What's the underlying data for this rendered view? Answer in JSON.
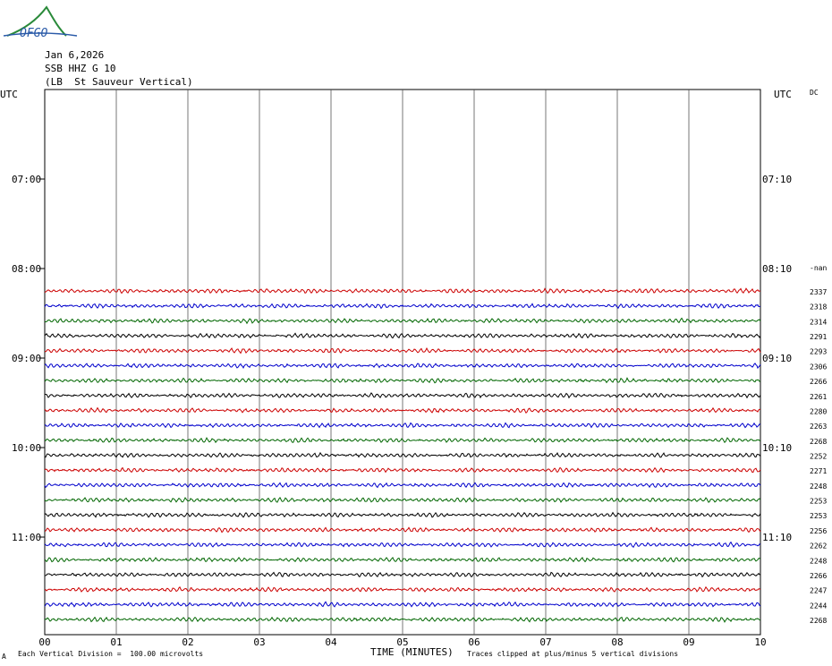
{
  "logo": {
    "text": "OFGO"
  },
  "header": {
    "date": "Jan 6,2026",
    "station": "SSB HHZ G 10",
    "location": "(LB  St Sauveur Vertical)"
  },
  "left_utc_header": "UTC",
  "right_utc_header": "UTC",
  "dc_header": "DC",
  "left_time_labels": [
    "07:00",
    "08:00",
    "09:00",
    "10:00",
    "11:00"
  ],
  "right_time_labels": [
    "07:10",
    "08:10",
    "09:10",
    "10:10",
    "11:10"
  ],
  "footer": {
    "scale_note": "Each Vertical Division =  100.00 microvolts",
    "axis_title": "TIME (MINUTES)",
    "clip_note": "Traces clipped at plus/minus 5 vertical divisions",
    "corner_mark": "A"
  },
  "chart_data": {
    "type": "line",
    "xlabel": "TIME (MINUTES)",
    "x_ticks": [
      "00",
      "01",
      "02",
      "03",
      "04",
      "05",
      "06",
      "07",
      "08",
      "09",
      "10"
    ],
    "xlim": [
      0,
      10
    ],
    "grid": true,
    "trace_colors": [
      "#cc0000",
      "#0000cc",
      "#006600",
      "#000000"
    ],
    "first_dc_label": "-nan",
    "dc_values": [
      2337,
      2318,
      2314,
      2291,
      2293,
      2306,
      2266,
      2261,
      2280,
      2263,
      2268,
      2252,
      2271,
      2248,
      2253,
      2253,
      2256,
      2262,
      2248,
      2266,
      2247,
      2244,
      2268
    ]
  }
}
